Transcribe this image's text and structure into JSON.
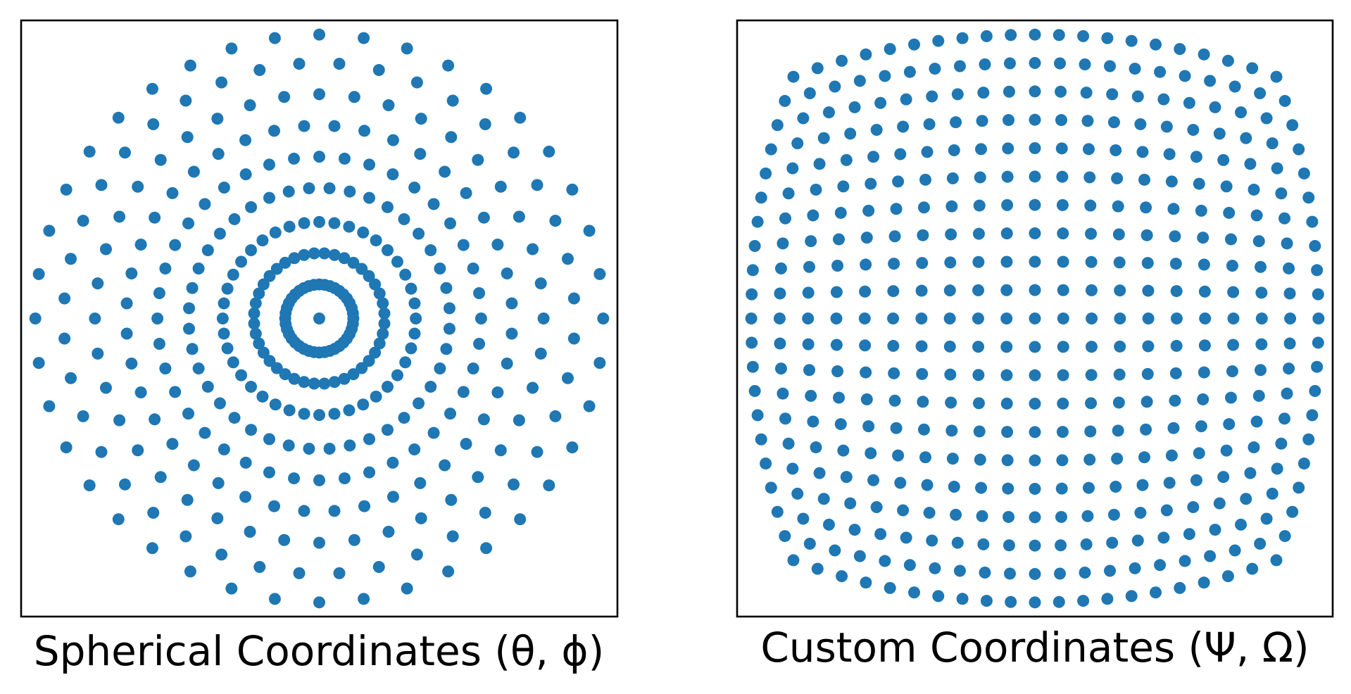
{
  "marker_color": "#1f77b4",
  "chart_data": [
    {
      "type": "scatter",
      "title": "",
      "caption": "Spherical Coordinates (θ, ϕ)",
      "xlabel": "",
      "ylabel": "",
      "xlim": [
        -1.05,
        1.05
      ],
      "ylim": [
        -1.05,
        1.05
      ],
      "grid": false,
      "ticks": false,
      "series": [
        {
          "center_point": [
            0,
            0
          ],
          "rings": [
            {
              "radius": 0.12,
              "points": 40,
              "phase_deg": 0
            },
            {
              "radius": 0.23,
              "points": 40,
              "phase_deg": 4.5
            },
            {
              "radius": 0.34,
              "points": 40,
              "phase_deg": 0
            },
            {
              "radius": 0.46,
              "points": 40,
              "phase_deg": 4.5
            },
            {
              "radius": 0.57,
              "points": 40,
              "phase_deg": 0
            },
            {
              "radius": 0.68,
              "points": 40,
              "phase_deg": 4.5
            },
            {
              "radius": 0.79,
              "points": 40,
              "phase_deg": 0
            },
            {
              "radius": 0.9,
              "points": 40,
              "phase_deg": 4.5
            },
            {
              "radius": 1.0,
              "points": 40,
              "phase_deg": 0
            }
          ]
        }
      ]
    },
    {
      "type": "scatter",
      "title": "",
      "caption": "Custom Coordinates (Ψ, Ω)",
      "xlabel": "",
      "ylabel": "",
      "xlim": [
        -1.05,
        1.05
      ],
      "ylim": [
        -1.05,
        1.05
      ],
      "grid": false,
      "ticks": false,
      "series": [
        {
          "grid_values": [
            -1.0,
            -0.9,
            -0.8,
            -0.7,
            -0.6,
            -0.5,
            -0.4,
            -0.3,
            -0.2,
            -0.1,
            0.0,
            0.1,
            0.2,
            0.3,
            0.4,
            0.5,
            0.6,
            0.7,
            0.8,
            0.9,
            1.0
          ],
          "mapping": "square_to_rounded_square"
        }
      ]
    }
  ]
}
